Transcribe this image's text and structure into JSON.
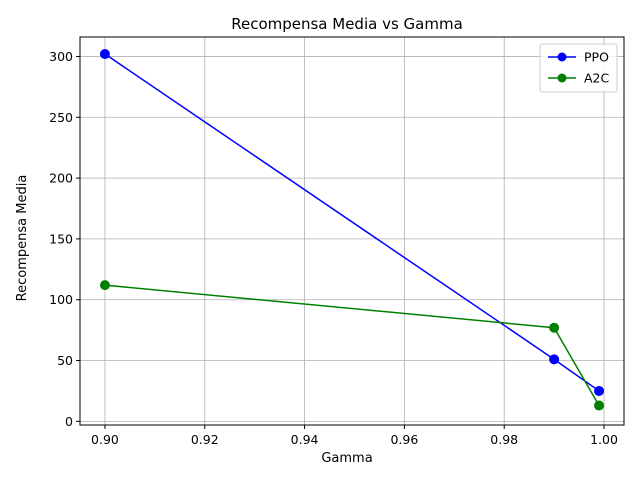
{
  "chart_data": {
    "type": "line",
    "title": "Recompensa Media vs Gamma",
    "xlabel": "Gamma",
    "ylabel": "Recompensa Media",
    "xlim": [
      0.895,
      1.004
    ],
    "ylim": [
      -3,
      316
    ],
    "xticks": [
      0.9,
      0.92,
      0.94,
      0.96,
      0.98,
      1.0
    ],
    "xtick_labels": [
      "0.90",
      "0.92",
      "0.94",
      "0.96",
      "0.98",
      "1.00"
    ],
    "yticks": [
      0,
      50,
      100,
      150,
      200,
      250,
      300
    ],
    "ytick_labels": [
      "0",
      "50",
      "100",
      "150",
      "200",
      "250",
      "300"
    ],
    "grid": true,
    "legend_position": "top-right",
    "series": [
      {
        "name": "PPO",
        "color": "#0000ff",
        "x": [
          0.9,
          0.99,
          0.999
        ],
        "y": [
          302,
          51,
          25
        ]
      },
      {
        "name": "A2C",
        "color": "#008000",
        "x": [
          0.9,
          0.99,
          0.999
        ],
        "y": [
          112,
          77,
          13
        ]
      }
    ]
  }
}
